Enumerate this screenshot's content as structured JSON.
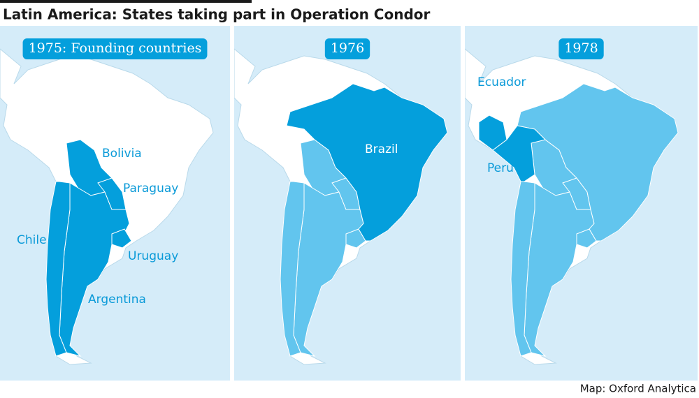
{
  "title": "Latin America: States taking part in Operation Condor",
  "source": "Map: Oxford Analytica",
  "panels": [
    {
      "heading": "1975: Founding countries",
      "labels": [
        "Bolivia",
        "Paraguay",
        "Chile",
        "Uruguay",
        "Argentina"
      ]
    },
    {
      "heading": "1976",
      "labels": [
        "Brazil"
      ]
    },
    {
      "heading": "1978",
      "labels": [
        "Ecuador",
        "Peru"
      ]
    }
  ]
}
